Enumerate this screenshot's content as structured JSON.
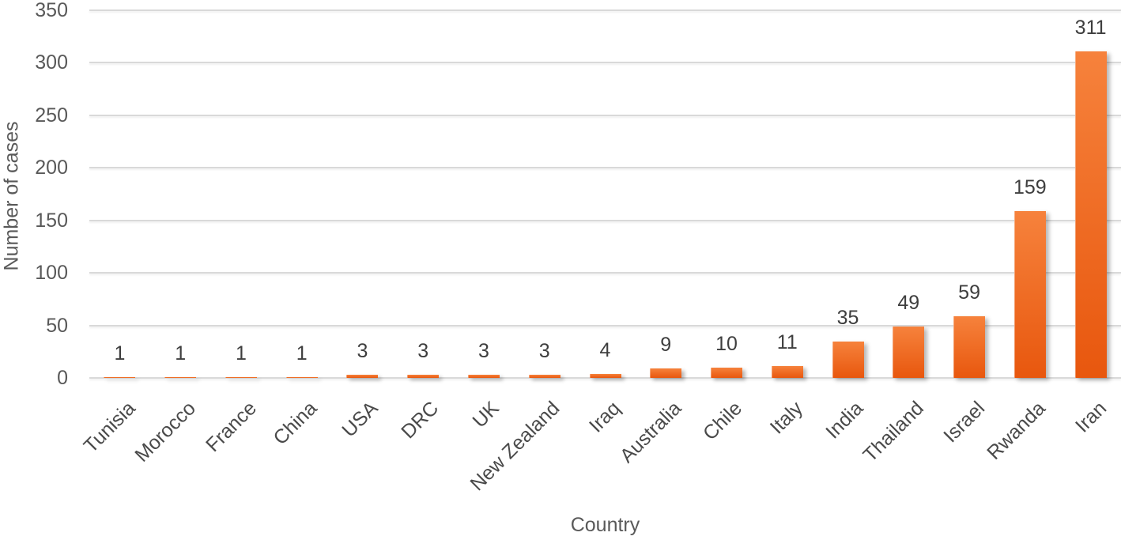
{
  "chart_data": {
    "type": "bar",
    "title": "",
    "xlabel": "Country",
    "ylabel": "Number of cases",
    "categories": [
      "Tunisia",
      "Morocco",
      "France",
      "China",
      "USA",
      "DRC",
      "UK",
      "New Zealand",
      "Iraq",
      "Australia",
      "Chile",
      "Italy",
      "India",
      "Thailand",
      "Israel",
      "Rwanda",
      "Iran"
    ],
    "values": [
      1,
      1,
      1,
      1,
      3,
      3,
      3,
      3,
      4,
      9,
      10,
      11,
      35,
      49,
      59,
      159,
      311
    ],
    "ylim": [
      0,
      350
    ],
    "yticks": [
      0,
      50,
      100,
      150,
      200,
      250,
      300,
      350
    ],
    "grid": true,
    "legend_position": "none",
    "bar_color_top": "#F6823C",
    "bar_color_bottom": "#E8570E",
    "gridline_color": "#D9D9D9",
    "tick_label_color": "#595959",
    "data_label_color": "#3E3E3E"
  }
}
